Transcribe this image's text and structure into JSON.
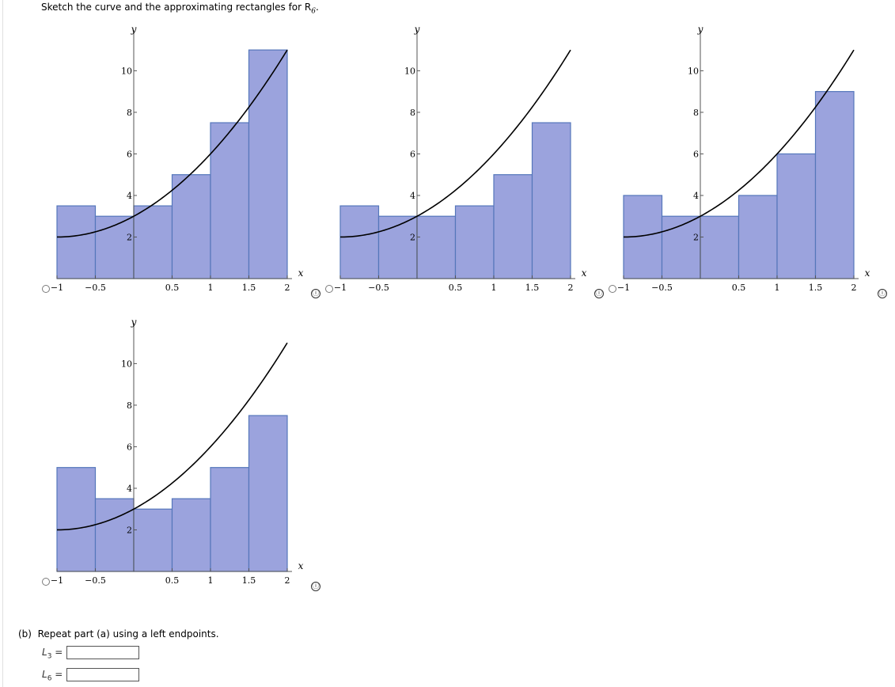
{
  "question": {
    "prompt": "Sketch the curve and the approximating rectangles for R",
    "prompt_subscript": "6",
    "prompt_end": "."
  },
  "part_b": {
    "label": "(b)",
    "text": "Repeat part (a) using a left endpoints.",
    "inputs": [
      {
        "letter": "L",
        "subscript": "3",
        "equals": "=",
        "value": ""
      },
      {
        "letter": "L",
        "subscript": "6",
        "equals": "=",
        "value": ""
      }
    ]
  },
  "info_icon": "ⓘ",
  "colors": {
    "rect_fill": "#9ba3dd",
    "rect_stroke": "#5577bb",
    "curve": "#000000",
    "axis": "#555555"
  },
  "chart_data": [
    {
      "type": "bar",
      "title": "",
      "xlabel": "x",
      "ylabel": "y",
      "xlim": [
        -1,
        2
      ],
      "ylim": [
        0,
        11.5
      ],
      "x_ticks": [
        -1,
        -0.5,
        0.5,
        1,
        1.5,
        2
      ],
      "x_tick_labels": [
        "−1",
        "−0.5",
        "0.5",
        "1",
        "1.5",
        "2"
      ],
      "y_ticks": [
        2,
        4,
        6,
        8,
        10
      ],
      "y_tick_labels": [
        "2",
        "4",
        "6",
        "8",
        "10"
      ],
      "curve": {
        "formula": "y = x^2 + 2x + 3",
        "x_range": [
          -1,
          2
        ]
      },
      "rectangles": {
        "left_edges": [
          -1,
          -0.5,
          0,
          0.5,
          1,
          1.5
        ],
        "width": 0.5,
        "heights": [
          3.5,
          3,
          3.5,
          5,
          7.5,
          11
        ]
      }
    },
    {
      "type": "bar",
      "title": "",
      "xlabel": "x",
      "ylabel": "y",
      "xlim": [
        -1,
        2
      ],
      "ylim": [
        0,
        11.5
      ],
      "x_ticks": [
        -1,
        -0.5,
        0.5,
        1,
        1.5,
        2
      ],
      "x_tick_labels": [
        "−1",
        "−0.5",
        "0.5",
        "1",
        "1.5",
        "2"
      ],
      "y_ticks": [
        2,
        4,
        6,
        8,
        10
      ],
      "y_tick_labels": [
        "2",
        "4",
        "6",
        "8",
        "10"
      ],
      "curve": {
        "formula": "y = x^2 + 2x + 3",
        "x_range": [
          -1,
          2
        ]
      },
      "rectangles": {
        "left_edges": [
          -1,
          -0.5,
          0,
          0.5,
          1,
          1.5
        ],
        "width": 0.5,
        "heights": [
          3.5,
          3,
          3,
          3.5,
          5,
          7.5
        ]
      }
    },
    {
      "type": "bar",
      "title": "",
      "xlabel": "x",
      "ylabel": "y",
      "xlim": [
        -1,
        2
      ],
      "ylim": [
        0,
        11.5
      ],
      "x_ticks": [
        -1,
        -0.5,
        0.5,
        1,
        1.5,
        2
      ],
      "x_tick_labels": [
        "−1",
        "−0.5",
        "0.5",
        "1",
        "1.5",
        "2"
      ],
      "y_ticks": [
        2,
        4,
        6,
        8,
        10
      ],
      "y_tick_labels": [
        "2",
        "4",
        "6",
        "8",
        "10"
      ],
      "curve": {
        "formula": "y = x^2 + 2x + 3",
        "x_range": [
          -1,
          2
        ]
      },
      "rectangles": {
        "left_edges": [
          -1,
          -0.5,
          0,
          0.5,
          1,
          1.5
        ],
        "width": 0.5,
        "heights": [
          4,
          3,
          3,
          4,
          6,
          9
        ]
      }
    },
    {
      "type": "bar",
      "title": "",
      "xlabel": "x",
      "ylabel": "y",
      "xlim": [
        -1,
        2
      ],
      "ylim": [
        0,
        11.5
      ],
      "x_ticks": [
        -1,
        -0.5,
        0.5,
        1,
        1.5,
        2
      ],
      "x_tick_labels": [
        "−1",
        "−0.5",
        "0.5",
        "1",
        "1.5",
        "2"
      ],
      "y_ticks": [
        2,
        4,
        6,
        8,
        10
      ],
      "y_tick_labels": [
        "2",
        "4",
        "6",
        "8",
        "10"
      ],
      "curve": {
        "formula": "y = x^2 + 2x + 3",
        "x_range": [
          -1,
          2
        ]
      },
      "rectangles": {
        "left_edges": [
          -1,
          -0.5,
          0,
          0.5,
          1,
          1.5
        ],
        "width": 0.5,
        "heights": [
          5,
          3.5,
          3,
          3.5,
          5,
          7.5
        ]
      }
    }
  ]
}
